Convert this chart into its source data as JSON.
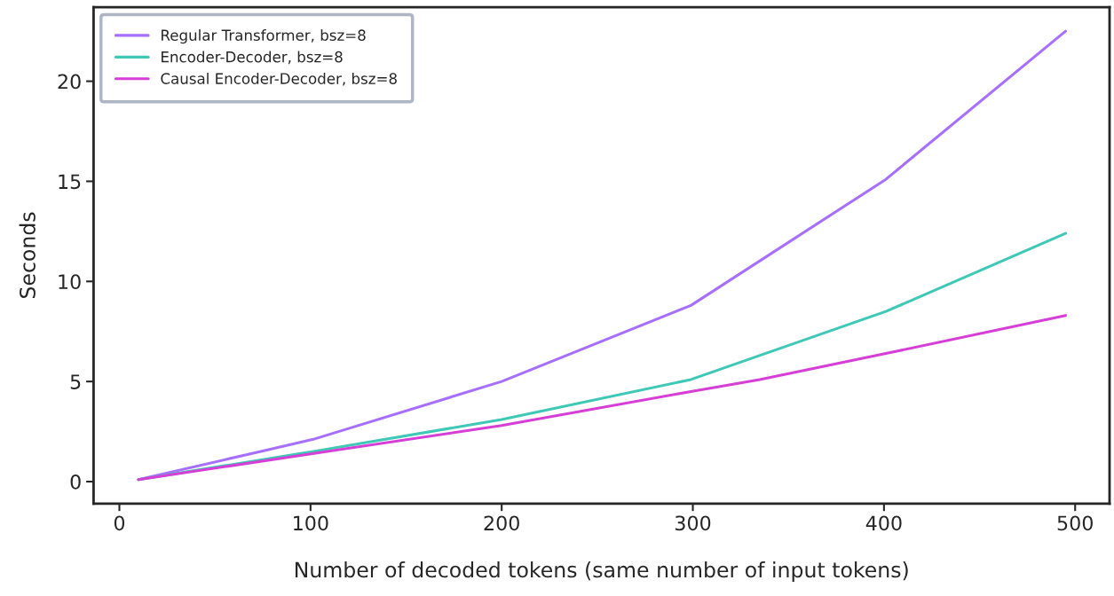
{
  "chart_data": {
    "type": "line",
    "xlabel": "Number of decoded tokens (same number of input tokens)",
    "ylabel": "Seconds",
    "xlim": [
      -13.5,
      518
    ],
    "xticks": [
      0,
      100,
      200,
      300,
      400,
      500
    ],
    "ylim": [
      -1.1,
      23.7
    ],
    "yticks": [
      0,
      5,
      10,
      15,
      20
    ],
    "grid": false,
    "legend": "top left",
    "marker": "none",
    "line_style": "solid",
    "series": [
      {
        "name": "Regular Transformer, bsz=8",
        "color": "#a66ffe",
        "x": [
          10,
          101,
          200,
          299,
          401,
          495
        ],
        "values": [
          0.1,
          2.1,
          5.0,
          8.8,
          15.1,
          22.5
        ]
      },
      {
        "name": "Encoder-Decoder, bsz=8",
        "color": "#3ec8b5",
        "x": [
          10,
          101,
          200,
          299,
          401,
          495
        ],
        "values": [
          0.1,
          1.5,
          3.1,
          5.1,
          8.5,
          12.4
        ]
      },
      {
        "name": "Causal Encoder-Decoder, bsz=8",
        "color": "#d63fd6",
        "x": [
          10,
          101,
          200,
          299,
          335,
          401,
          495
        ],
        "values": [
          0.1,
          1.4,
          2.8,
          4.5,
          5.1,
          6.4,
          8.3
        ]
      }
    ]
  }
}
